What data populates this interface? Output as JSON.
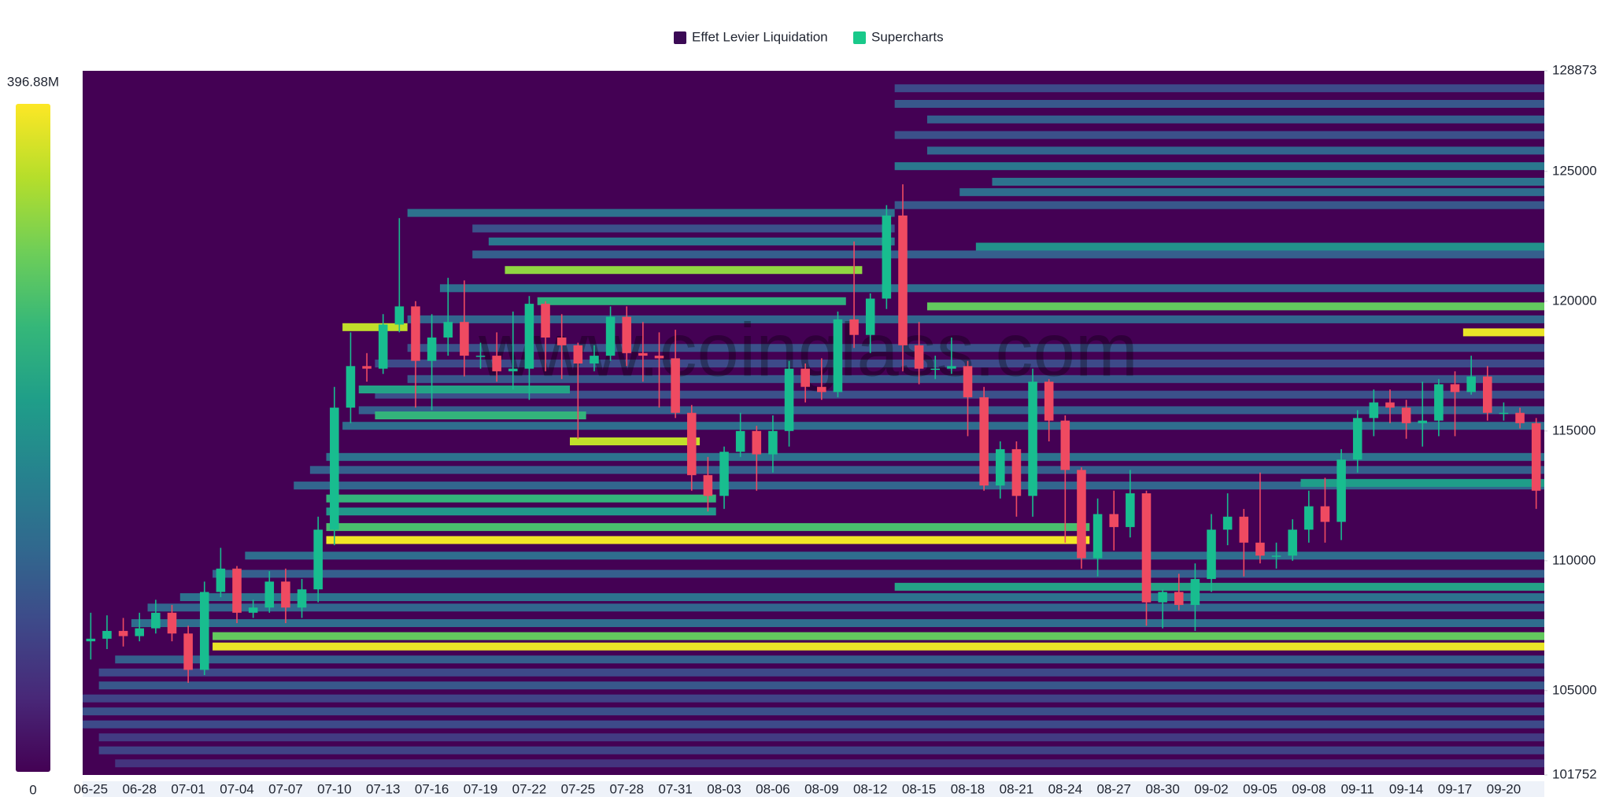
{
  "chart_data": {
    "type": "liquidation-heatmap",
    "watermark": "www.coinglass.com",
    "series": [
      {
        "name": "Effet Levier Liquidation",
        "color": "#3b0a55"
      },
      {
        "name": "Supercharts",
        "color": "#19c98a"
      }
    ],
    "up_color": "#18bd8f",
    "down_color": "#ef4a61",
    "colormap": [
      "#440154",
      "#482878",
      "#3e4989",
      "#31688e",
      "#26828e",
      "#1f9e89",
      "#35b779",
      "#6ece58",
      "#b5de2b",
      "#fde725"
    ],
    "clim": [
      0,
      396.88
    ],
    "colorticks": [
      0,
      {
        "value": 396.88,
        "label": "396.88M"
      }
    ],
    "ylim": [
      101752,
      128873
    ],
    "yticks": [
      101752,
      105000,
      110000,
      115000,
      120000,
      125000,
      128873
    ],
    "categories": [
      "06-25",
      null,
      null,
      "06-28",
      null,
      null,
      "07-01",
      null,
      null,
      "07-04",
      null,
      null,
      "07-07",
      null,
      null,
      "07-10",
      null,
      null,
      "07-13",
      null,
      null,
      "07-16",
      null,
      null,
      "07-19",
      null,
      null,
      "07-22",
      null,
      null,
      "07-25",
      null,
      null,
      "07-28",
      null,
      null,
      "07-31",
      null,
      null,
      "08-03",
      null,
      null,
      "08-06",
      null,
      null,
      "08-09",
      null,
      null,
      "08-12",
      null,
      null,
      "08-15",
      null,
      null,
      "08-18",
      null,
      null,
      "08-21",
      null,
      null,
      "08-24",
      null,
      null,
      "08-27",
      null,
      null,
      "08-30",
      null,
      null,
      "09-02",
      null,
      null,
      "09-05",
      null,
      null,
      "09-08",
      null,
      null,
      "09-11",
      null,
      null,
      "09-14",
      null,
      null,
      "09-17",
      null,
      null,
      "09-20",
      null,
      null
    ],
    "open": [
      106900,
      107000,
      107300,
      107100,
      107400,
      108000,
      107200,
      105800,
      108800,
      109700,
      108000,
      108200,
      109200,
      108200,
      108900,
      111200,
      115900,
      117500,
      117400,
      119100,
      119800,
      117700,
      118600,
      119200,
      117900,
      117900,
      117300,
      117400,
      119900,
      118600,
      118300,
      117600,
      117900,
      119400,
      118000,
      117900,
      117800,
      115700,
      113300,
      112500,
      114200,
      115000,
      114100,
      115000,
      117400,
      116700,
      116500,
      119300,
      118700,
      120100,
      123300,
      118300,
      117400,
      117400,
      117500,
      116300,
      112900,
      114300,
      112500,
      116900,
      115400,
      113500,
      110100,
      111800,
      111300,
      112600,
      108400,
      108800,
      108300,
      109300,
      111200,
      111700,
      110700,
      110200,
      110200,
      111200,
      112100,
      111500,
      113900,
      115500,
      116100,
      115900,
      115300,
      115400,
      116800,
      116500,
      117100,
      115700,
      115700,
      115300
    ],
    "high": [
      108000,
      107900,
      107800,
      108000,
      108500,
      108300,
      107500,
      109200,
      110500,
      109800,
      108500,
      109600,
      109700,
      109300,
      111700,
      116700,
      118800,
      118000,
      119500,
      123200,
      120000,
      119500,
      120900,
      120800,
      118400,
      118800,
      119600,
      120200,
      120000,
      119500,
      118400,
      118300,
      119800,
      119800,
      119200,
      118800,
      118900,
      116000,
      114000,
      114400,
      115700,
      115200,
      115600,
      117700,
      117600,
      117800,
      119600,
      122300,
      120300,
      123700,
      124500,
      119200,
      117900,
      118600,
      117700,
      116700,
      114600,
      114600,
      117400,
      117000,
      115600,
      113600,
      112400,
      112700,
      113500,
      112700,
      108900,
      109500,
      109900,
      111800,
      112600,
      112000,
      113400,
      110700,
      111600,
      112700,
      113200,
      114300,
      115800,
      116600,
      116600,
      116200,
      116900,
      117000,
      117300,
      117900,
      117500,
      116100,
      115900,
      115500
    ],
    "low": [
      106200,
      106600,
      106700,
      106900,
      107200,
      106900,
      105300,
      105600,
      108600,
      107600,
      107800,
      108000,
      107600,
      107800,
      108400,
      110600,
      115300,
      116900,
      117200,
      118800,
      115900,
      115800,
      117900,
      117100,
      117400,
      116900,
      116600,
      116200,
      117300,
      117000,
      114700,
      117300,
      117700,
      117500,
      116900,
      115900,
      115500,
      112700,
      111900,
      112000,
      114000,
      112700,
      113400,
      114400,
      116100,
      116200,
      116300,
      118200,
      118000,
      119700,
      117300,
      116800,
      117000,
      117200,
      114800,
      112700,
      112400,
      111700,
      111700,
      114600,
      110700,
      109700,
      109400,
      110400,
      110900,
      107500,
      107400,
      108100,
      107300,
      108800,
      110600,
      109400,
      109900,
      109700,
      110000,
      110700,
      110700,
      110800,
      113400,
      114800,
      115300,
      114700,
      114400,
      114800,
      114800,
      116400,
      115400,
      115400,
      115100,
      112000
    ],
    "close": [
      107000,
      107300,
      107100,
      107400,
      108000,
      107200,
      105800,
      108800,
      109700,
      108000,
      108200,
      109200,
      108200,
      108900,
      111200,
      115900,
      117500,
      117400,
      119100,
      119800,
      117700,
      118600,
      119200,
      117900,
      117900,
      117300,
      117400,
      119900,
      118600,
      118300,
      117600,
      117900,
      119400,
      118000,
      117900,
      117800,
      115700,
      113300,
      112500,
      114200,
      115000,
      114100,
      115000,
      117400,
      116700,
      116500,
      119300,
      118700,
      120100,
      123300,
      118300,
      117400,
      117400,
      117500,
      116300,
      112900,
      114300,
      112500,
      116900,
      115400,
      113500,
      110100,
      111800,
      111300,
      112600,
      108400,
      108800,
      108300,
      109300,
      111200,
      111700,
      110700,
      110200,
      110200,
      111200,
      112100,
      111500,
      113900,
      115500,
      116100,
      115900,
      115300,
      115400,
      116800,
      116500,
      117100,
      115700,
      115700,
      115300,
      112700
    ],
    "levels": {
      "price": [
        102200,
        102700,
        103200,
        103700,
        104200,
        104700,
        105200,
        105700,
        106200,
        107600,
        108200,
        108600,
        109500,
        110200,
        112900,
        113500,
        114000,
        115200,
        115800,
        116400,
        117000,
        117600,
        118200,
        119300,
        120500,
        121800,
        122300,
        122100,
        122800,
        123400,
        123700,
        124200,
        124600,
        125200,
        125800,
        126400,
        127000,
        127600,
        128200,
        121200,
        120000,
        119800,
        118800,
        119000,
        114600,
        112400,
        111900,
        111300,
        110800,
        109000,
        107100,
        106700,
        113000,
        116600,
        115600
      ],
      "start": [
        2,
        1,
        1,
        0,
        0,
        0,
        1,
        1,
        2,
        3,
        4,
        6,
        8,
        10,
        13,
        14,
        15,
        16,
        17,
        18,
        20,
        18,
        20,
        20,
        22,
        24,
        25,
        55,
        24,
        20,
        50,
        54,
        56,
        50,
        52,
        50,
        52,
        50,
        50,
        26,
        28,
        52,
        85,
        16,
        30,
        15,
        15,
        15,
        15,
        50,
        8,
        8,
        75,
        17,
        18
      ],
      "end": [
        89,
        89,
        89,
        89,
        89,
        89,
        89,
        89,
        89,
        89,
        89,
        89,
        89,
        89,
        89,
        89,
        89,
        89,
        89,
        89,
        89,
        89,
        89,
        89,
        89,
        89,
        49,
        89,
        49,
        49,
        89,
        89,
        89,
        89,
        89,
        89,
        89,
        89,
        89,
        47,
        46,
        89,
        89,
        19,
        37,
        38,
        38,
        61,
        61,
        89,
        89,
        89,
        89,
        29,
        30
      ],
      "value": [
        60,
        80,
        70,
        90,
        100,
        80,
        110,
        90,
        120,
        140,
        130,
        150,
        120,
        140,
        130,
        120,
        150,
        140,
        120,
        100,
        110,
        90,
        100,
        130,
        140,
        120,
        160,
        200,
        100,
        150,
        110,
        140,
        150,
        160,
        130,
        100,
        120,
        110,
        90,
        330,
        250,
        300,
        385,
        360,
        360,
        260,
        210,
        280,
        390,
        230,
        300,
        385,
        220,
        230,
        260
      ]
    }
  }
}
